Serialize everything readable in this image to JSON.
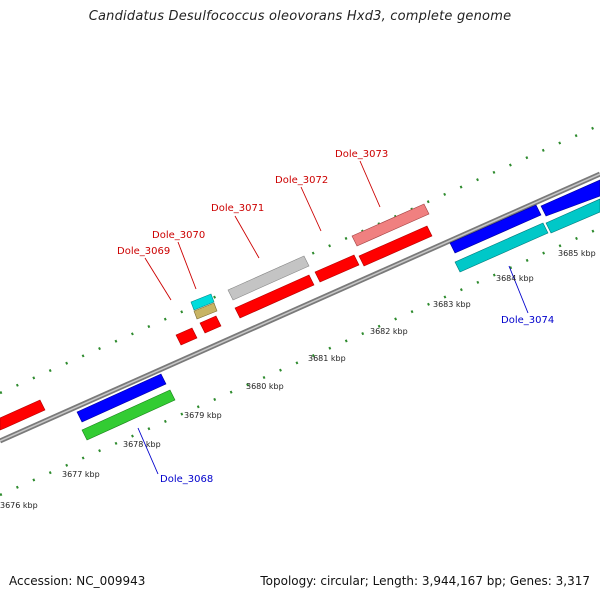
{
  "title": "Candidatus Desulfococcus oleovorans Hxd3, complete genome",
  "footer": {
    "accession": "Accession: NC_009943",
    "summary": "Topology: circular; Length: 3,944,167 bp; Genes: 3,317"
  },
  "colors": {
    "backbone": "#8c8c8c",
    "dots": "#2e8b2e",
    "top_label": "#cc0000",
    "bottom_label": "#0000cc",
    "red": "#ff0000",
    "blue": "#0000ff",
    "cyan": "#00c8c8",
    "green": "#33cc33",
    "gray": "#c0c0c0",
    "pink": "#f08080",
    "khaki": "#c8b464"
  },
  "scale_labels": [
    "3676 kbp",
    "3677 kbp",
    "3678 kbp",
    "3679 kbp",
    "3680 kbp",
    "3681 kbp",
    "3682 kbp",
    "3683 kbp",
    "3684 kbp",
    "3685 kbp"
  ],
  "gene_labels": {
    "top": [
      "Dole_3069",
      "Dole_3070",
      "Dole_3071",
      "Dole_3072",
      "Dole_3073"
    ],
    "bottom": [
      "Dole_3068",
      "Dole_3074"
    ]
  }
}
